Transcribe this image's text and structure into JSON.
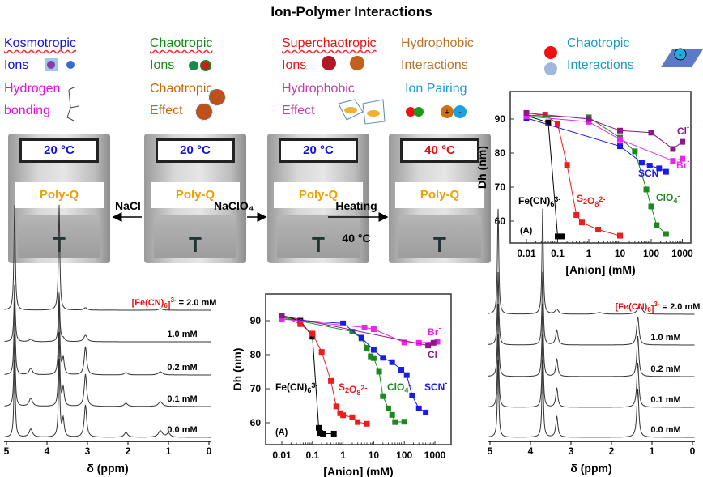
{
  "title": "Ion-Polymer Interactions",
  "labels": [
    {
      "l1": "Kosmotropic",
      "l2": "Ions",
      "color": "#1010e0",
      "icon": "kosmotropic-ion-icon"
    },
    {
      "l1": "Chaotropic",
      "l2": "Ions",
      "color": "#148a14",
      "icon": "chaotropic-ion-icon"
    },
    {
      "l1": "Superchaotropic",
      "l2": "Ions",
      "color": "#e81010",
      "icon": "superchaotropic-ion-icon"
    },
    {
      "l1": "Hydrophobic",
      "l2": "Interactions",
      "color": "#b8742a",
      "icon": "hydrophobic-spheres-icon"
    },
    {
      "l1": "Chaotropic",
      "l2": "Interactions",
      "color": "#1b9ac0",
      "icon": "surface-anion-icon"
    },
    {
      "l1": "Hydrogen",
      "l2": "bonding",
      "color": "#e010e0",
      "icon": "hydrogen-bond-structure-icon"
    },
    {
      "l1": "Chaotropic",
      "l2": "Effect",
      "color": "#c8680a",
      "icon": "cluster-icon"
    },
    {
      "l1": "Hydrophobic",
      "l2": "Effect",
      "color": "#c040a8",
      "icon": "cage-structure-icon"
    },
    {
      "l1": "Ion Pairing",
      "l2": "",
      "color": "#1b9ad6",
      "icon": "ion-pair-icon"
    }
  ],
  "vials": [
    {
      "temp": "20 °C",
      "temp_color": "#1010e0",
      "label": "Poly-Q",
      "mark": "T"
    },
    {
      "temp": "20 °C",
      "temp_color": "#1010e0",
      "label": "Poly-Q",
      "mark": "T"
    },
    {
      "temp": "20 °C",
      "temp_color": "#1010e0",
      "label": "Poly-Q",
      "mark": "T"
    },
    {
      "temp": "40 °C",
      "temp_color": "#e81010",
      "label": "Poly-Q",
      "mark": "T"
    }
  ],
  "arrows": {
    "nacl": "NaCl",
    "naclo4": "NaClO₄",
    "heating": "Heating",
    "heating_temp": "40 °C"
  },
  "chart_data": [
    {
      "type": "scatter",
      "panel": "(A)",
      "xlabel": "[Anion] (mM)",
      "ylabel": "Dh (nm)",
      "xscale": "log",
      "xticks": [
        "0.01",
        "0.1",
        "1",
        "10",
        "100",
        "1000"
      ],
      "yticks": [
        "60",
        "70",
        "80",
        "90"
      ],
      "ylim": [
        54,
        97
      ],
      "series": [
        {
          "name": "Fe(CN)6 3-",
          "color": "#000000",
          "x": [
            0.01,
            0.05,
            0.1,
            0.14
          ],
          "y": [
            91,
            89,
            55.5,
            55.5
          ]
        },
        {
          "name": "S2O8 2-",
          "color": "#ee1c1c",
          "x": [
            0.01,
            0.04,
            0.1,
            0.2,
            0.4,
            0.6,
            2,
            10
          ],
          "y": [
            91,
            91.3,
            88.5,
            76.5,
            61.8,
            59.6,
            57.5,
            55.7
          ]
        },
        {
          "name": "ClO4-",
          "color": "#1a8a1a",
          "x": [
            0.01,
            1,
            10,
            30,
            70,
            100,
            150,
            300
          ],
          "y": [
            91,
            90.5,
            84.5,
            80.5,
            69.3,
            64.3,
            58.8,
            56.2
          ]
        },
        {
          "name": "SCN-",
          "color": "#1a1aee",
          "x": [
            0.01,
            10,
            50,
            90,
            180,
            300
          ],
          "y": [
            90.3,
            82,
            77.2,
            76.3,
            75.5,
            74.5
          ]
        },
        {
          "name": "Br-",
          "color": "#ee22ee",
          "x": [
            0.01,
            1,
            10,
            500,
            1000
          ],
          "y": [
            90.8,
            89.2,
            84,
            77.7,
            78.3
          ]
        },
        {
          "name": "Cl-",
          "color": "#8a1a8a",
          "x": [
            0.01,
            1,
            10,
            100,
            500,
            1000
          ],
          "y": [
            91.8,
            90,
            86.6,
            86,
            81.2,
            83.3
          ]
        }
      ]
    },
    {
      "type": "scatter",
      "panel": "(A)",
      "xlabel": "[Anion] (mM)",
      "ylabel": "Dh (nm)",
      "xscale": "log",
      "xticks": [
        "0.01",
        "0.1",
        "1",
        "10",
        "100",
        "1000"
      ],
      "yticks": [
        "60",
        "70",
        "80",
        "90"
      ],
      "ylim": [
        55,
        97
      ],
      "series": [
        {
          "name": "Fe(CN)6 3-",
          "color": "#000000",
          "x": [
            0.01,
            0.04,
            0.1,
            0.16,
            0.18,
            0.22,
            0.5
          ],
          "y": [
            91.5,
            90,
            85.3,
            58.5,
            57,
            56.8,
            56.8
          ]
        },
        {
          "name": "S2O8 2-",
          "color": "#ee1c1c",
          "x": [
            0.01,
            0.04,
            0.1,
            0.2,
            0.4,
            0.6,
            0.8,
            1,
            2,
            3,
            6
          ],
          "y": [
            91.5,
            89,
            86.2,
            80.8,
            72.3,
            64.8,
            62.8,
            62.2,
            61.6,
            60.2,
            59.7
          ]
        },
        {
          "name": "ClO4-",
          "color": "#1a8a1a",
          "x": [
            0.01,
            2,
            4,
            6,
            8,
            10,
            15,
            20,
            30,
            40,
            50,
            100
          ],
          "y": [
            91,
            86.8,
            84.8,
            82,
            79.5,
            79,
            75,
            67.8,
            64.2,
            62.3,
            60.2,
            60.3
          ]
        },
        {
          "name": "SCN-",
          "color": "#1a1aee",
          "x": [
            0.01,
            1,
            4,
            10,
            20,
            40,
            80,
            120,
            180,
            300,
            500
          ],
          "y": [
            90.5,
            89.2,
            85,
            81.4,
            79.1,
            77.8,
            75.6,
            74,
            68,
            64.2,
            63
          ]
        },
        {
          "name": "Br-",
          "color": "#ee22ee",
          "x": [
            0.01,
            5,
            10,
            100,
            300,
            1200
          ],
          "y": [
            90.5,
            88,
            87.5,
            83.6,
            83.5,
            83.8
          ]
        },
        {
          "name": "Cl-",
          "color": "#8a1a8a",
          "x": [
            0.01,
            600,
            900
          ],
          "y": [
            91.5,
            82.7,
            83.5
          ]
        }
      ]
    },
    {
      "type": "line",
      "xlabel": "δ (ppm)",
      "xticks": [
        "5",
        "4",
        "3",
        "2",
        "1",
        "0"
      ],
      "conc_label": "[Fe(CN)6]3- = 2.0 mM",
      "traces": [
        "2.0 mM",
        "1.0 mM",
        "0.2 mM",
        "0.1 mM",
        "0.0 mM"
      ],
      "peaks_ppm": [
        4.8,
        4.4,
        3.7,
        3.6,
        3.05,
        2.05,
        1.2
      ]
    },
    {
      "type": "line",
      "xlabel": "δ (ppm)",
      "xticks": [
        "5",
        "4",
        "3",
        "2",
        "1",
        "0"
      ],
      "conc_label": "[Fe(CN)6]3- = 2.0 mM",
      "traces": [
        "2.0 mM",
        "1.0 mM",
        "0.2 mM",
        "0.1 mM",
        "0.0 mM"
      ],
      "peaks_ppm": [
        4.8,
        3.7,
        3.35,
        1.35
      ]
    }
  ]
}
